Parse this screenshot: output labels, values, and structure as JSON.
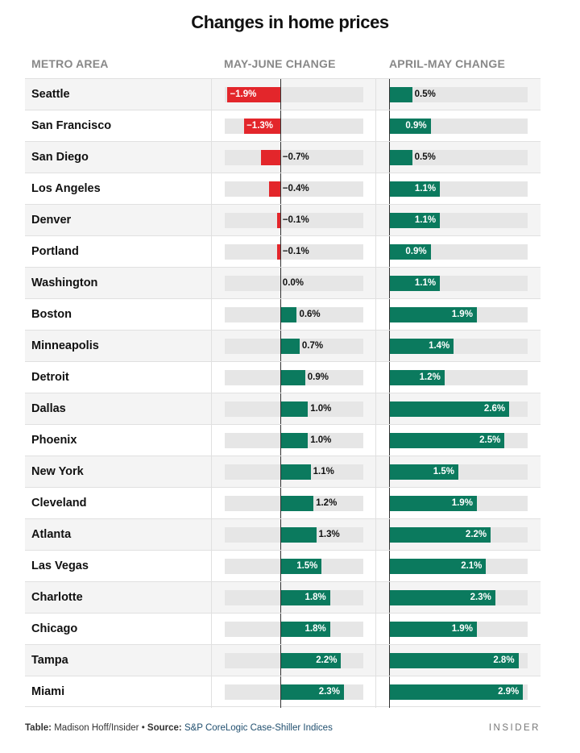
{
  "chart_data": {
    "type": "bar",
    "title": "Changes in home prices",
    "columns": [
      "METRO AREA",
      "MAY-JUNE CHANGE",
      "APRIL-MAY CHANGE"
    ],
    "categories": [
      "Seattle",
      "San Francisco",
      "San Diego",
      "Los Angeles",
      "Denver",
      "Portland",
      "Washington",
      "Boston",
      "Minneapolis",
      "Detroit",
      "Dallas",
      "Phoenix",
      "New York",
      "Cleveland",
      "Atlanta",
      "Las Vegas",
      "Charlotte",
      "Chicago",
      "Tampa",
      "Miami"
    ],
    "series": [
      {
        "name": "MAY-JUNE CHANGE",
        "values": [
          -1.9,
          -1.3,
          -0.7,
          -0.4,
          -0.1,
          -0.1,
          0.0,
          0.6,
          0.7,
          0.9,
          1.0,
          1.0,
          1.1,
          1.2,
          1.3,
          1.5,
          1.8,
          1.8,
          2.2,
          2.3
        ],
        "range": [
          -2,
          3
        ]
      },
      {
        "name": "APRIL-MAY CHANGE",
        "values": [
          0.5,
          0.9,
          0.5,
          1.1,
          1.1,
          0.9,
          1.1,
          1.9,
          1.4,
          1.2,
          2.6,
          2.5,
          1.5,
          1.9,
          2.2,
          2.1,
          2.3,
          1.9,
          2.8,
          2.9
        ],
        "range": [
          0,
          3
        ]
      }
    ],
    "unit": "%",
    "colors": {
      "negative": "#e3262b",
      "positive": "#0b7a5e",
      "track": "#e6e6e6"
    }
  },
  "footer": {
    "table_label": "Table:",
    "table_credit": "Madison Hoff/Insider",
    "separator": "•",
    "source_label": "Source:",
    "source_text": "S&P CoreLogic Case-Shiller Indices"
  },
  "brand": "INSIDER"
}
